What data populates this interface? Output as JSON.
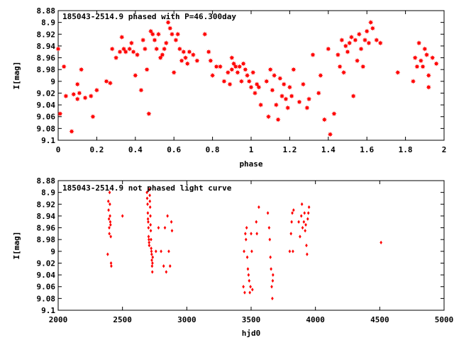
{
  "chart_data": [
    {
      "type": "scatter",
      "title": "185043-2514.9 phased with P=46.300day",
      "xlabel": "phase",
      "ylabel": "I[mag]",
      "xlim": [
        0,
        2
      ],
      "ylim": [
        9.1,
        8.88
      ],
      "y_inverted": true,
      "x_ticks": [
        0,
        0.2,
        0.4,
        0.6,
        0.8,
        1,
        1.2,
        1.4,
        1.6,
        1.8,
        2
      ],
      "x_tick_labels": [
        "0",
        "0.2",
        "0.4",
        "0.6",
        "0.8",
        "1",
        "1.2",
        "1.4",
        "1.6",
        "1.8",
        "2"
      ],
      "y_ticks": [
        8.88,
        8.9,
        8.92,
        8.94,
        8.96,
        8.98,
        9,
        9.02,
        9.04,
        9.06,
        9.08,
        9.1
      ],
      "y_tick_labels": [
        "8.88",
        "8.9",
        "8.92",
        "8.94",
        "8.96",
        "8.98",
        "9",
        "9.02",
        "9.04",
        "9.06",
        "9.08",
        "9.1"
      ],
      "color": "#ff0000",
      "marker": "star",
      "points": [
        [
          0.0,
          8.945
        ],
        [
          0.01,
          9.055
        ],
        [
          0.03,
          8.975
        ],
        [
          0.04,
          9.025
        ],
        [
          0.07,
          9.085
        ],
        [
          0.08,
          9.022
        ],
        [
          0.1,
          9.03
        ],
        [
          0.1,
          9.005
        ],
        [
          0.11,
          9.02
        ],
        [
          0.12,
          8.98
        ],
        [
          0.14,
          9.028
        ],
        [
          0.17,
          9.025
        ],
        [
          0.18,
          9.06
        ],
        [
          0.2,
          9.015
        ],
        [
          0.25,
          9.0
        ],
        [
          0.27,
          9.003
        ],
        [
          0.28,
          8.945
        ],
        [
          0.3,
          8.96
        ],
        [
          0.32,
          8.95
        ],
        [
          0.33,
          8.925
        ],
        [
          0.34,
          8.945
        ],
        [
          0.35,
          8.95
        ],
        [
          0.37,
          8.945
        ],
        [
          0.38,
          8.935
        ],
        [
          0.39,
          8.95
        ],
        [
          0.4,
          8.99
        ],
        [
          0.41,
          8.955
        ],
        [
          0.43,
          9.015
        ],
        [
          0.44,
          8.93
        ],
        [
          0.45,
          8.945
        ],
        [
          0.46,
          8.98
        ],
        [
          0.47,
          9.055
        ],
        [
          0.48,
          8.915
        ],
        [
          0.49,
          8.92
        ],
        [
          0.5,
          8.93
        ],
        [
          0.51,
          8.945
        ],
        [
          0.52,
          8.92
        ],
        [
          0.53,
          8.96
        ],
        [
          0.54,
          8.955
        ],
        [
          0.55,
          8.945
        ],
        [
          0.56,
          8.935
        ],
        [
          0.57,
          8.9
        ],
        [
          0.58,
          8.91
        ],
        [
          0.59,
          8.92
        ],
        [
          0.6,
          8.985
        ],
        [
          0.61,
          8.93
        ],
        [
          0.62,
          8.92
        ],
        [
          0.63,
          8.945
        ],
        [
          0.64,
          8.965
        ],
        [
          0.65,
          8.95
        ],
        [
          0.66,
          8.96
        ],
        [
          0.67,
          8.97
        ],
        [
          0.68,
          8.95
        ],
        [
          0.7,
          8.955
        ],
        [
          0.72,
          8.965
        ],
        [
          0.76,
          8.92
        ],
        [
          0.78,
          8.95
        ],
        [
          0.79,
          8.965
        ],
        [
          0.8,
          8.99
        ],
        [
          0.82,
          8.975
        ],
        [
          0.84,
          8.975
        ],
        [
          0.86,
          9.0
        ],
        [
          0.88,
          8.985
        ],
        [
          0.89,
          9.005
        ],
        [
          0.9,
          8.96
        ],
        [
          0.9,
          8.98
        ],
        [
          0.91,
          8.97
        ],
        [
          0.92,
          8.975
        ],
        [
          0.93,
          8.985
        ],
        [
          0.94,
          8.975
        ],
        [
          0.95,
          9.0
        ],
        [
          0.96,
          8.97
        ],
        [
          0.97,
          8.98
        ],
        [
          0.98,
          8.99
        ],
        [
          0.99,
          9.0
        ],
        [
          1.0,
          9.01
        ],
        [
          1.01,
          8.985
        ],
        [
          1.02,
          9.02
        ],
        [
          1.03,
          9.005
        ],
        [
          1.04,
          9.01
        ],
        [
          1.05,
          9.04
        ],
        [
          1.08,
          9.0
        ],
        [
          1.09,
          9.06
        ],
        [
          1.1,
          8.98
        ],
        [
          1.11,
          9.015
        ],
        [
          1.12,
          8.99
        ],
        [
          1.13,
          9.04
        ],
        [
          1.14,
          9.065
        ],
        [
          1.15,
          8.995
        ],
        [
          1.16,
          9.025
        ],
        [
          1.17,
          9.005
        ],
        [
          1.18,
          9.03
        ],
        [
          1.19,
          9.045
        ],
        [
          1.2,
          9.01
        ],
        [
          1.21,
          9.025
        ],
        [
          1.22,
          8.98
        ],
        [
          1.25,
          9.035
        ],
        [
          1.27,
          9.005
        ],
        [
          1.29,
          9.045
        ],
        [
          1.3,
          9.03
        ],
        [
          1.32,
          8.955
        ],
        [
          1.35,
          9.02
        ],
        [
          1.36,
          8.99
        ],
        [
          1.38,
          9.065
        ],
        [
          1.4,
          8.945
        ],
        [
          1.41,
          9.09
        ],
        [
          1.43,
          9.055
        ],
        [
          1.45,
          8.955
        ],
        [
          1.46,
          8.975
        ],
        [
          1.47,
          8.93
        ],
        [
          1.48,
          8.985
        ],
        [
          1.49,
          8.94
        ],
        [
          1.5,
          8.95
        ],
        [
          1.51,
          8.935
        ],
        [
          1.52,
          8.925
        ],
        [
          1.53,
          9.025
        ],
        [
          1.54,
          8.93
        ],
        [
          1.55,
          8.965
        ],
        [
          1.56,
          8.92
        ],
        [
          1.57,
          8.945
        ],
        [
          1.58,
          8.975
        ],
        [
          1.59,
          8.93
        ],
        [
          1.6,
          8.915
        ],
        [
          1.61,
          8.935
        ],
        [
          1.62,
          8.9
        ],
        [
          1.63,
          8.91
        ],
        [
          1.65,
          8.93
        ],
        [
          1.67,
          8.935
        ],
        [
          1.76,
          8.985
        ],
        [
          1.84,
          9.0
        ],
        [
          1.85,
          8.96
        ],
        [
          1.86,
          8.975
        ],
        [
          1.87,
          8.935
        ],
        [
          1.88,
          8.965
        ],
        [
          1.89,
          8.975
        ],
        [
          1.9,
          8.945
        ],
        [
          1.91,
          8.955
        ],
        [
          1.92,
          9.01
        ],
        [
          1.92,
          8.99
        ],
        [
          1.94,
          8.96
        ],
        [
          1.96,
          8.97
        ]
      ]
    },
    {
      "type": "scatter",
      "title": "185043-2514.9 not phased light curve",
      "xlabel": "hjd0",
      "ylabel": "I[mag]",
      "xlim": [
        2000,
        5000
      ],
      "ylim": [
        9.1,
        8.88
      ],
      "y_inverted": true,
      "x_ticks": [
        2000,
        2500,
        3000,
        3500,
        4000,
        4500,
        5000
      ],
      "x_tick_labels": [
        "2000",
        "2500",
        "3000",
        "3500",
        "4000",
        "4500",
        "5000"
      ],
      "y_ticks": [
        8.88,
        8.9,
        8.92,
        8.94,
        8.96,
        8.98,
        9,
        9.02,
        9.04,
        9.06,
        9.08,
        9.1
      ],
      "y_tick_labels": [
        "8.88",
        "8.9",
        "8.92",
        "8.94",
        "8.96",
        "8.98",
        "9",
        "9.02",
        "9.04",
        "9.06",
        "9.08",
        "9.1"
      ],
      "color": "#ff0000",
      "marker": "diamond",
      "points": [
        [
          2385,
          9.005
        ],
        [
          2390,
          8.915
        ],
        [
          2392,
          8.93
        ],
        [
          2395,
          8.945
        ],
        [
          2397,
          8.96
        ],
        [
          2398,
          8.97
        ],
        [
          2400,
          8.9
        ],
        [
          2402,
          8.92
        ],
        [
          2403,
          8.94
        ],
        [
          2405,
          8.95
        ],
        [
          2407,
          8.955
        ],
        [
          2409,
          8.975
        ],
        [
          2411,
          9.02
        ],
        [
          2413,
          9.025
        ],
        [
          2500,
          8.94
        ],
        [
          2690,
          8.9
        ],
        [
          2692,
          8.91
        ],
        [
          2695,
          8.92
        ],
        [
          2697,
          8.935
        ],
        [
          2698,
          8.945
        ],
        [
          2700,
          8.95
        ],
        [
          2702,
          8.96
        ],
        [
          2703,
          8.975
        ],
        [
          2705,
          8.98
        ],
        [
          2707,
          8.985
        ],
        [
          2708,
          8.99
        ],
        [
          2710,
          8.895
        ],
        [
          2712,
          8.905
        ],
        [
          2713,
          8.915
        ],
        [
          2715,
          8.925
        ],
        [
          2717,
          8.94
        ],
        [
          2718,
          8.955
        ],
        [
          2720,
          8.965
        ],
        [
          2722,
          8.98
        ],
        [
          2723,
          8.995
        ],
        [
          2725,
          9.0
        ],
        [
          2727,
          9.005
        ],
        [
          2728,
          9.015
        ],
        [
          2730,
          9.025
        ],
        [
          2732,
          9.035
        ],
        [
          2733,
          9.02
        ],
        [
          2735,
          9.01
        ],
        [
          2760,
          9.0
        ],
        [
          2780,
          8.96
        ],
        [
          2800,
          9.0
        ],
        [
          2820,
          9.025
        ],
        [
          2830,
          8.96
        ],
        [
          2840,
          9.035
        ],
        [
          2850,
          8.94
        ],
        [
          2860,
          9.0
        ],
        [
          2870,
          9.025
        ],
        [
          2880,
          8.95
        ],
        [
          2885,
          8.965
        ],
        [
          3440,
          9.06
        ],
        [
          3445,
          9.0
        ],
        [
          3450,
          9.07
        ],
        [
          3455,
          8.97
        ],
        [
          3460,
          8.98
        ],
        [
          3465,
          8.96
        ],
        [
          3470,
          9.01
        ],
        [
          3475,
          9.03
        ],
        [
          3480,
          9.04
        ],
        [
          3485,
          9.05
        ],
        [
          3490,
          9.07
        ],
        [
          3495,
          9.06
        ],
        [
          3500,
          8.97
        ],
        [
          3505,
          9.0
        ],
        [
          3510,
          9.065
        ],
        [
          3540,
          8.95
        ],
        [
          3545,
          8.97
        ],
        [
          3560,
          8.925
        ],
        [
          3630,
          8.935
        ],
        [
          3640,
          8.96
        ],
        [
          3645,
          8.98
        ],
        [
          3650,
          9.01
        ],
        [
          3655,
          9.03
        ],
        [
          3660,
          9.06
        ],
        [
          3665,
          9.08
        ],
        [
          3668,
          9.05
        ],
        [
          3670,
          9.04
        ],
        [
          3800,
          9.0
        ],
        [
          3810,
          8.97
        ],
        [
          3815,
          8.95
        ],
        [
          3820,
          8.935
        ],
        [
          3825,
          9.0
        ],
        [
          3830,
          8.93
        ],
        [
          3870,
          8.95
        ],
        [
          3880,
          8.975
        ],
        [
          3890,
          8.94
        ],
        [
          3895,
          8.92
        ],
        [
          3900,
          8.96
        ],
        [
          3910,
          8.95
        ],
        [
          3915,
          8.935
        ],
        [
          3920,
          8.965
        ],
        [
          3925,
          8.955
        ],
        [
          3930,
          8.99
        ],
        [
          3935,
          9.005
        ],
        [
          3940,
          8.945
        ],
        [
          3945,
          8.935
        ],
        [
          3950,
          8.925
        ],
        [
          4510,
          8.985
        ]
      ]
    }
  ]
}
